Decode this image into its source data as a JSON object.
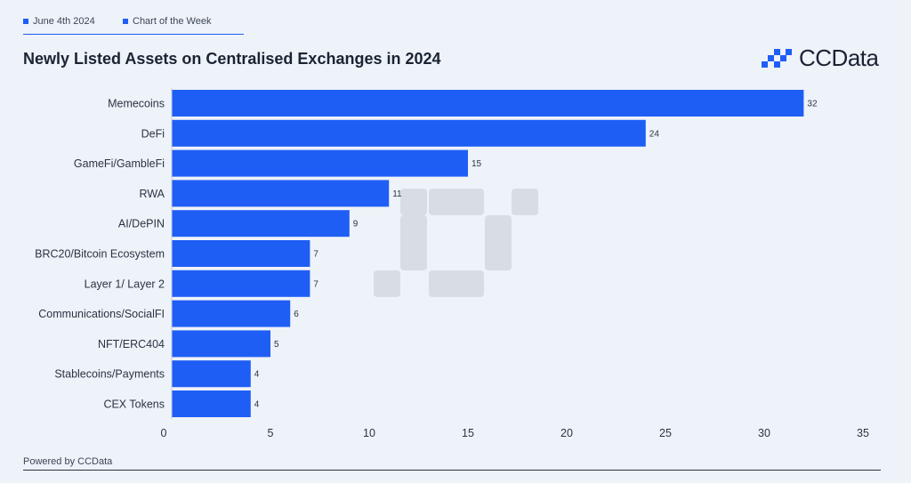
{
  "header": {
    "date_tag": "June 4th 2024",
    "series_tag": "Chart of the Week",
    "logo_text": "CCData"
  },
  "footer": {
    "text": "Powered by CCData"
  },
  "colors": {
    "bar": "#1f5ef5",
    "accent": "#1f5ef5",
    "background": "#eef2f9"
  },
  "chart_data": {
    "type": "bar",
    "orientation": "horizontal",
    "title": "Newly Listed Assets on Centralised Exchanges in 2024",
    "categories": [
      "Memecoins",
      "DeFi",
      "GameFi/GambleFi",
      "RWA",
      "AI/DePIN",
      "BRC20/Bitcoin Ecosystem",
      "Layer 1/ Layer 2",
      "Communications/SocialFI",
      "NFT/ERC404",
      "Stablecoins/Payments",
      "CEX Tokens"
    ],
    "values": [
      32,
      24,
      15,
      11,
      9,
      7,
      7,
      6,
      5,
      4,
      4
    ],
    "xlim": [
      0,
      35
    ],
    "xticks": [
      0,
      5,
      10,
      15,
      20,
      25,
      30,
      35
    ],
    "grid": false,
    "legend": "none"
  }
}
